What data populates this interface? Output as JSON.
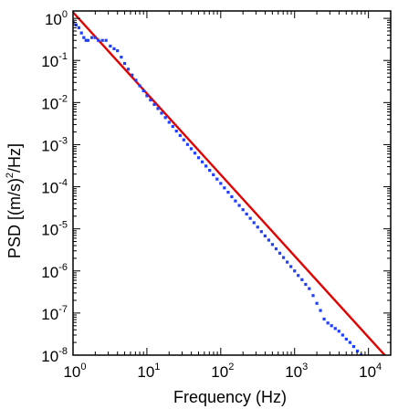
{
  "chart_data": {
    "type": "scatter",
    "xlabel": "Frequency (Hz)",
    "ylabel_parts": [
      "PSD [(m/s)",
      "2",
      "/Hz]"
    ],
    "x_scale": "log",
    "y_scale": "log",
    "xlim": [
      1,
      20000
    ],
    "ylim": [
      1e-08,
      1.5
    ],
    "x_tick_values": [
      1,
      10,
      100,
      1000,
      10000
    ],
    "x_tick_labels": [
      {
        "base": "10",
        "exp": "0"
      },
      {
        "base": "10",
        "exp": "1"
      },
      {
        "base": "10",
        "exp": "2"
      },
      {
        "base": "10",
        "exp": "3"
      },
      {
        "base": "10",
        "exp": "4"
      }
    ],
    "y_tick_values": [
      1e-08,
      1e-07,
      1e-06,
      1e-05,
      0.0001,
      0.001,
      0.01,
      0.1,
      1
    ],
    "y_tick_labels": [
      {
        "base": "10",
        "exp": "-8"
      },
      {
        "base": "10",
        "exp": "-7"
      },
      {
        "base": "10",
        "exp": "-6"
      },
      {
        "base": "10",
        "exp": "-5"
      },
      {
        "base": "10",
        "exp": "-4"
      },
      {
        "base": "10",
        "exp": "-3"
      },
      {
        "base": "10",
        "exp": "-2"
      },
      {
        "base": "10",
        "exp": "-1"
      },
      {
        "base": "10",
        "exp": "0"
      }
    ],
    "grid": false,
    "series": [
      {
        "kind": "line",
        "color": "#e00000",
        "x": [
          1,
          20000
        ],
        "y": [
          1.4,
          7e-09
        ]
      },
      {
        "kind": "points",
        "color": "#1f3fff",
        "x": [
          1.0,
          1.1,
          1.2,
          1.3,
          1.4,
          1.5,
          1.6,
          1.8,
          2.0,
          2.2,
          2.5,
          2.8,
          3.2,
          3.6,
          4.0,
          4.5,
          5.0,
          5.6,
          6.3,
          7.1,
          8.0,
          9.0,
          10,
          11.2,
          12.6,
          14.1,
          15.8,
          17.8,
          20,
          22.4,
          25.1,
          28.2,
          31.6,
          35.5,
          39.8,
          44.7,
          50.1,
          56.2,
          63.1,
          70.8,
          79.4,
          89.1,
          100,
          112,
          126,
          141,
          158,
          178,
          200,
          224,
          251,
          282,
          316,
          355,
          398,
          447,
          501,
          562,
          631,
          708,
          794,
          891,
          1000,
          1120,
          1260,
          1410,
          1580,
          1780,
          2000,
          2240,
          2510,
          2820,
          3160,
          3550,
          3980,
          4470,
          5010,
          5620,
          6310,
          7080,
          7940,
          8910,
          10000,
          11200
        ],
        "y": [
          0.8,
          0.7,
          0.6,
          0.45,
          0.35,
          0.3,
          0.3,
          0.35,
          0.35,
          0.3,
          0.3,
          0.3,
          0.22,
          0.19,
          0.17,
          0.12,
          0.085,
          0.062,
          0.045,
          0.034,
          0.025,
          0.019,
          0.0145,
          0.0115,
          0.009,
          0.0072,
          0.0056,
          0.0044,
          0.0034,
          0.0027,
          0.0021,
          0.00165,
          0.0013,
          0.00101,
          0.0008,
          0.00063,
          0.00049,
          0.00039,
          0.00031,
          0.000245,
          0.000193,
          0.000152,
          0.00012,
          9.4e-05,
          7.4e-05,
          5.8e-05,
          4.6e-05,
          3.6e-05,
          2.85e-05,
          2.25e-05,
          1.78e-05,
          1.4e-05,
          1.1e-05,
          8.6e-06,
          6.8e-06,
          5.4e-06,
          4.25e-06,
          3.35e-06,
          2.64e-06,
          2.08e-06,
          1.62e-06,
          1.27e-06,
          1e-06,
          7.8e-07,
          6.2e-07,
          4.8e-07,
          3.8e-07,
          2.6e-07,
          1.7e-07,
          1.15e-07,
          7.2e-08,
          5.8e-08,
          5e-08,
          4.3e-08,
          3.7e-08,
          3e-08,
          2.4e-08,
          2e-08,
          1.6e-08,
          1.25e-08,
          1e-08,
          8e-09,
          6.3e-09,
          5e-09
        ]
      }
    ]
  }
}
